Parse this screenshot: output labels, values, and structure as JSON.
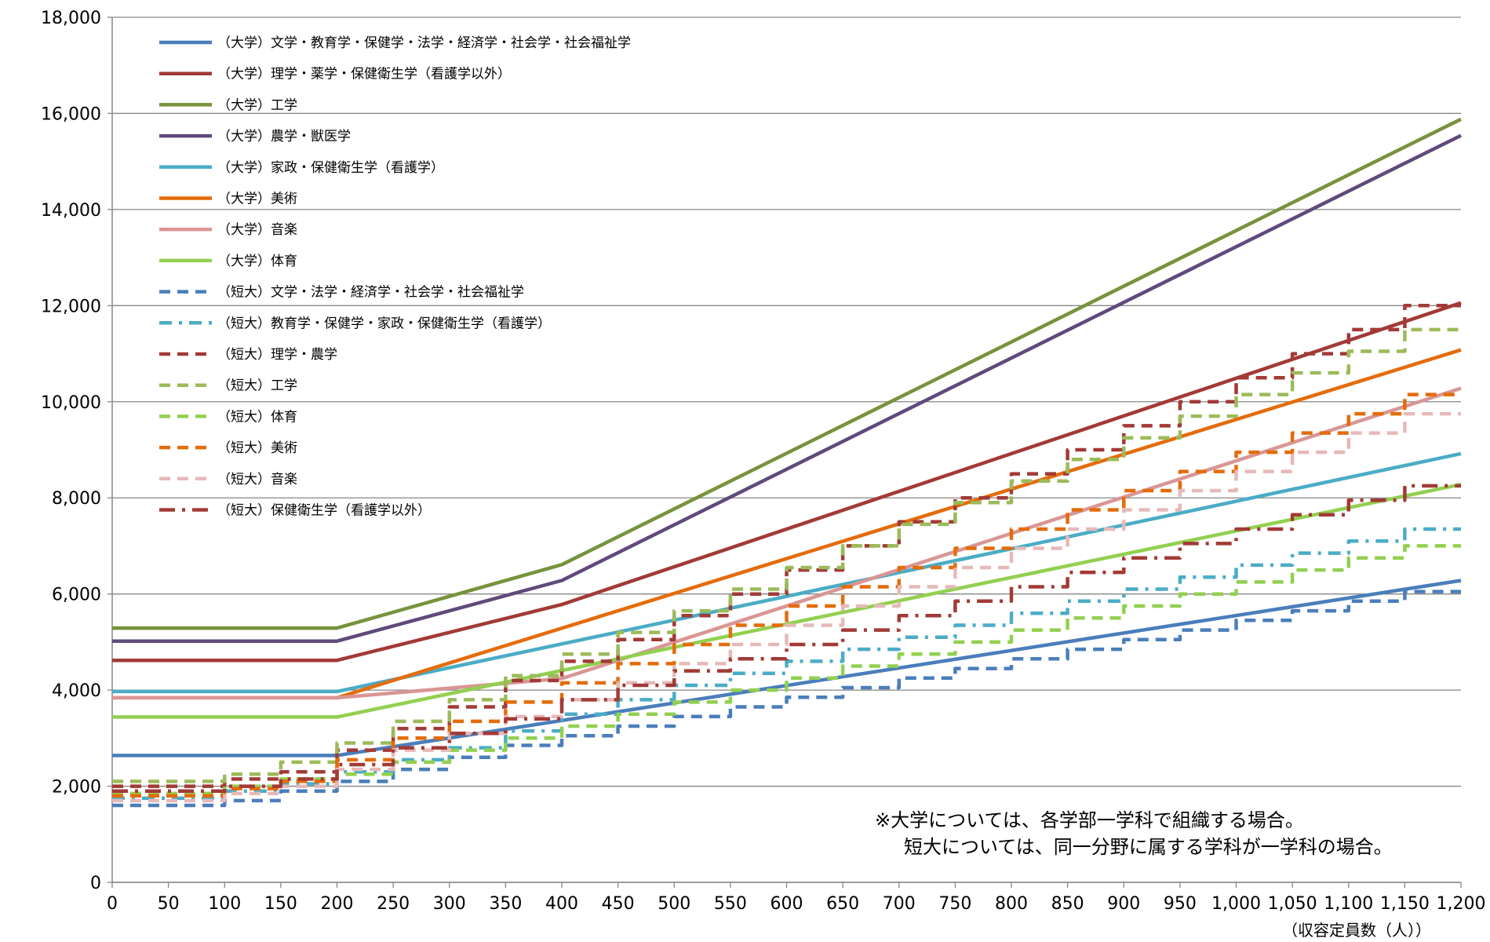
{
  "chart_data": {
    "type": "line",
    "x_unit_label": "（収容定員数（人））",
    "ylim": [
      0,
      18000
    ],
    "xlim": [
      0,
      1200
    ],
    "y_ticks": [
      0,
      2000,
      4000,
      6000,
      8000,
      10000,
      12000,
      14000,
      16000,
      18000
    ],
    "y_tick_labels": [
      "0",
      "2,000",
      "4,000",
      "6,000",
      "8,000",
      "10,000",
      "12,000",
      "14,000",
      "16,000",
      "18,000"
    ],
    "x_ticks": [
      0,
      50,
      100,
      150,
      200,
      250,
      300,
      350,
      400,
      450,
      500,
      550,
      600,
      650,
      700,
      750,
      800,
      850,
      900,
      950,
      1000,
      1050,
      1100,
      1150,
      1200
    ],
    "x_tick_labels": [
      "0",
      "50",
      "100",
      "150",
      "200",
      "250",
      "300",
      "350",
      "400",
      "450",
      "500",
      "550",
      "600",
      "650",
      "700",
      "750",
      "800",
      "850",
      "900",
      "950",
      "1,000",
      "1,050",
      "1,100",
      "1,150",
      "1,200"
    ],
    "grid": "horizontal",
    "legend_position": "top-left",
    "notes": [
      "※大学については、各学部一学科で組織する場合。",
      "短大については、同一分野に属する学科が一学科の場合。"
    ],
    "series": [
      {
        "name": "（大学）文学・教育学・保健学・法学・経済学・社会学・社会福祉学",
        "color": "#4a7ebb",
        "style": "solid",
        "kind": "line",
        "x": [
          0,
          200,
          1200
        ],
        "y": [
          2640,
          2640,
          6280
        ]
      },
      {
        "name": "（大学）理学・薬学・保健衛生学（看護学以外）",
        "color": "#a23a36",
        "style": "solid",
        "kind": "line",
        "x": [
          0,
          200,
          400,
          1200
        ],
        "y": [
          4620,
          4620,
          5780,
          12060
        ]
      },
      {
        "name": "（大学）工学",
        "color": "#77933c",
        "style": "solid",
        "kind": "line",
        "x": [
          0,
          200,
          400,
          1200
        ],
        "y": [
          5290,
          5290,
          6610,
          15880
        ]
      },
      {
        "name": "（大学）農学・獣医学",
        "color": "#604a7b",
        "style": "solid",
        "kind": "line",
        "x": [
          0,
          200,
          400,
          1200
        ],
        "y": [
          5020,
          5020,
          6280,
          15540
        ]
      },
      {
        "name": "（大学）家政・保健衛生学（看護学）",
        "color": "#4bacc6",
        "style": "solid",
        "kind": "line",
        "x": [
          0,
          200,
          1200
        ],
        "y": [
          3970,
          3970,
          8920
        ]
      },
      {
        "name": "（大学）美術",
        "color": "#e46c0a",
        "style": "solid",
        "kind": "line",
        "x": [
          0,
          200,
          1200
        ],
        "y": [
          3840,
          3840,
          11080
        ]
      },
      {
        "name": "（大学）音楽",
        "color": "#d99694",
        "style": "solid",
        "kind": "line",
        "x": [
          0,
          200,
          400,
          1200
        ],
        "y": [
          3840,
          3840,
          4240,
          10280
        ]
      },
      {
        "name": "（大学）体育",
        "color": "#92d050",
        "style": "solid",
        "kind": "line",
        "x": [
          0,
          200,
          1200
        ],
        "y": [
          3440,
          3440,
          8280
        ]
      },
      {
        "name": "（短大）文学・法学・経済学・社会学・社会福祉学",
        "color": "#4a7ebb",
        "style": "dash",
        "kind": "step",
        "x": [
          0,
          100,
          150,
          200,
          250,
          300,
          350,
          400,
          450,
          500,
          550,
          600,
          650,
          700,
          750,
          800,
          850,
          900,
          950,
          1000,
          1050,
          1100,
          1150,
          1200
        ],
        "y": [
          1600,
          1700,
          1900,
          2100,
          2350,
          2600,
          2850,
          3050,
          3250,
          3450,
          3650,
          3850,
          4050,
          4250,
          4450,
          4650,
          4850,
          5050,
          5250,
          5450,
          5650,
          5850,
          6050,
          6050
        ]
      },
      {
        "name": "（短大）教育学・保健学・家政・保健衛生学（看護学）",
        "color": "#4bacc6",
        "style": "dashdot",
        "kind": "step",
        "x": [
          0,
          100,
          150,
          200,
          250,
          300,
          350,
          400,
          450,
          500,
          550,
          600,
          650,
          700,
          750,
          800,
          850,
          900,
          950,
          1000,
          1050,
          1100,
          1150,
          1200
        ],
        "y": [
          1750,
          1900,
          2050,
          2300,
          2550,
          2800,
          3150,
          3500,
          3800,
          4100,
          4350,
          4600,
          4850,
          5100,
          5350,
          5600,
          5850,
          6100,
          6350,
          6600,
          6850,
          7100,
          7350,
          7350
        ]
      },
      {
        "name": "（短大）理学・農学",
        "color": "#a23a36",
        "style": "dash",
        "kind": "step",
        "x": [
          0,
          100,
          150,
          200,
          250,
          300,
          350,
          400,
          450,
          500,
          550,
          600,
          650,
          700,
          750,
          800,
          850,
          900,
          950,
          1000,
          1050,
          1100,
          1150,
          1200
        ],
        "y": [
          2000,
          2150,
          2300,
          2750,
          3200,
          3650,
          4200,
          4600,
          5050,
          5550,
          6000,
          6500,
          7000,
          7500,
          8000,
          8500,
          9000,
          9500,
          10000,
          10500,
          11000,
          11500,
          12000,
          12000
        ]
      },
      {
        "name": "（短大）工学",
        "color": "#9bbb59",
        "style": "dash",
        "kind": "step",
        "x": [
          0,
          100,
          150,
          200,
          250,
          300,
          350,
          400,
          450,
          500,
          550,
          600,
          650,
          700,
          750,
          800,
          850,
          900,
          950,
          1000,
          1050,
          1100,
          1150,
          1200
        ],
        "y": [
          2100,
          2250,
          2500,
          2900,
          3350,
          3800,
          4300,
          4750,
          5200,
          5650,
          6100,
          6550,
          7000,
          7450,
          7900,
          8350,
          8800,
          9250,
          9700,
          10150,
          10600,
          11050,
          11500,
          11500
        ]
      },
      {
        "name": "（短大）体育",
        "color": "#92d050",
        "style": "dash",
        "kind": "step",
        "x": [
          0,
          100,
          150,
          200,
          250,
          300,
          350,
          400,
          450,
          500,
          550,
          600,
          650,
          700,
          750,
          800,
          850,
          900,
          950,
          1000,
          1050,
          1100,
          1150,
          1200
        ],
        "y": [
          1850,
          2000,
          2150,
          2250,
          2500,
          2750,
          3000,
          3250,
          3500,
          3750,
          4000,
          4250,
          4500,
          4750,
          5000,
          5250,
          5500,
          5750,
          6000,
          6250,
          6500,
          6750,
          7000,
          7000
        ]
      },
      {
        "name": "（短大）美術",
        "color": "#e46c0a",
        "style": "dash",
        "kind": "step",
        "x": [
          0,
          100,
          150,
          200,
          250,
          300,
          350,
          400,
          450,
          500,
          550,
          600,
          650,
          700,
          750,
          800,
          850,
          900,
          950,
          1000,
          1050,
          1100,
          1150,
          1200
        ],
        "y": [
          1800,
          1950,
          2100,
          2550,
          3000,
          3350,
          3750,
          4150,
          4550,
          4950,
          5350,
          5750,
          6150,
          6550,
          6950,
          7350,
          7750,
          8150,
          8550,
          8950,
          9350,
          9750,
          10150,
          10150
        ]
      },
      {
        "name": "（短大）音楽",
        "color": "#e6b9b8",
        "style": "dash",
        "kind": "step",
        "x": [
          0,
          100,
          150,
          200,
          250,
          300,
          350,
          400,
          450,
          500,
          550,
          600,
          650,
          700,
          750,
          800,
          850,
          900,
          950,
          1000,
          1050,
          1100,
          1150,
          1200
        ],
        "y": [
          1700,
          1850,
          2000,
          2350,
          2750,
          3100,
          3450,
          3800,
          4150,
          4550,
          4950,
          5350,
          5750,
          6150,
          6550,
          6950,
          7350,
          7750,
          8150,
          8550,
          8950,
          9350,
          9750,
          9750
        ]
      },
      {
        "name": "（短大）保健衛生学（看護学以外）",
        "color": "#a23a36",
        "style": "longdashdot",
        "kind": "step",
        "x": [
          0,
          100,
          150,
          200,
          250,
          300,
          350,
          400,
          450,
          500,
          550,
          600,
          650,
          700,
          750,
          800,
          850,
          900,
          950,
          1000,
          1050,
          1100,
          1150,
          1200
        ],
        "y": [
          1900,
          2000,
          2150,
          2450,
          2800,
          3100,
          3400,
          3800,
          4100,
          4400,
          4650,
          4950,
          5250,
          5550,
          5850,
          6150,
          6450,
          6750,
          7050,
          7350,
          7650,
          7950,
          8250,
          8250
        ]
      }
    ]
  }
}
